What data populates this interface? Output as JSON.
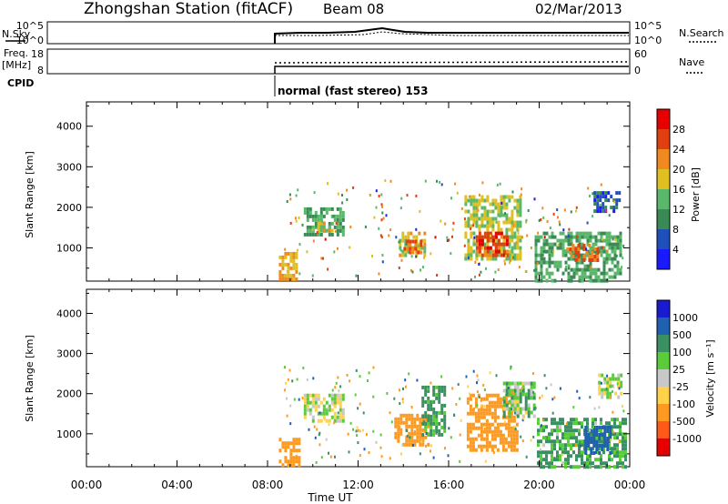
{
  "header": {
    "station": "Zhongshan Station (fitACF)",
    "beam": "Beam 08",
    "date": "02/Mar/2013"
  },
  "noise_panel": {
    "left_label": "N.Sky",
    "left_ticks": [
      "10^5",
      "10^0"
    ],
    "right_ticks": [
      "10^5",
      "10^0"
    ],
    "right_label": "N.Search"
  },
  "freq_panel": {
    "left_label_1": "Freq.",
    "left_label_2": "[MHz]",
    "left_ticks": [
      "18",
      "8"
    ],
    "right_ticks": [
      "60",
      "0"
    ],
    "right_label": "Nave"
  },
  "cpid_panel": {
    "label": "CPID",
    "mode_text": "normal (fast stereo) 153"
  },
  "colors": {
    "power_scale": [
      "#1a1aff",
      "#1f4fb8",
      "#3a8a55",
      "#5ab86a",
      "#e0c020",
      "#f08a20",
      "#e04010",
      "#e60000"
    ],
    "velocity_scale": [
      "#e60000",
      "#ff5a1a",
      "#ff9a20",
      "#ffd24a",
      "#c8c8c8",
      "#5acc3a",
      "#3a9060",
      "#2060b0",
      "#1a1ad0"
    ]
  },
  "chart_data": [
    {
      "type": "heatmap",
      "name": "power",
      "xlabel": "",
      "ylabel": "Slant Range [km]",
      "x_range_hours": [
        0,
        24
      ],
      "ylim": [
        180,
        4600
      ],
      "yticks": [
        "1000",
        "2000",
        "3000",
        "4000"
      ],
      "colorbar": {
        "label": "Power [dB]",
        "ticks": [
          "4",
          "8",
          "12",
          "16",
          "20",
          "24",
          "28"
        ],
        "range": [
          0,
          32
        ]
      },
      "echo_regions": [
        {
          "t0": 8.5,
          "t1": 9.3,
          "r0": 200,
          "r1": 900,
          "v": 20
        },
        {
          "t0": 9.6,
          "t1": 11.4,
          "r0": 1300,
          "r1": 2000,
          "v": 12
        },
        {
          "t0": 10.2,
          "t1": 10.9,
          "r0": 1450,
          "r1": 1650,
          "v": 18
        },
        {
          "t0": 13.8,
          "t1": 15.0,
          "r0": 800,
          "r1": 1400,
          "v": 18
        },
        {
          "t0": 14.0,
          "t1": 14.8,
          "r0": 900,
          "r1": 1200,
          "v": 24
        },
        {
          "t0": 16.7,
          "t1": 19.2,
          "r0": 700,
          "r1": 2300,
          "v": 16
        },
        {
          "t0": 17.2,
          "t1": 18.6,
          "r0": 800,
          "r1": 1400,
          "v": 26
        },
        {
          "t0": 19.8,
          "t1": 23.6,
          "r0": 200,
          "r1": 1400,
          "v": 12
        },
        {
          "t0": 21.2,
          "t1": 22.6,
          "r0": 700,
          "r1": 1100,
          "v": 24
        },
        {
          "t0": 22.4,
          "t1": 23.6,
          "r0": 1900,
          "r1": 2400,
          "v": 6
        }
      ]
    },
    {
      "type": "heatmap",
      "name": "velocity",
      "xlabel": "Time UT",
      "ylabel": "Slant Range [km]",
      "x_range_hours": [
        0,
        24
      ],
      "xticks": [
        "00:00",
        "04:00",
        "08:00",
        "12:00",
        "16:00",
        "20:00",
        "00:00"
      ],
      "ylim": [
        180,
        4600
      ],
      "yticks": [
        "1000",
        "2000",
        "3000",
        "4000"
      ],
      "colorbar": {
        "label": "Velocity [m s⁻¹]",
        "ticks": [
          "1000",
          "500",
          "100",
          "25",
          "-25",
          "-100",
          "-500",
          "-1000"
        ]
      },
      "echo_regions": [
        {
          "t0": 8.5,
          "t1": 9.4,
          "r0": 200,
          "r1": 900,
          "v": -300
        },
        {
          "t0": 9.6,
          "t1": 11.4,
          "r0": 1300,
          "r1": 2000,
          "v": 0
        },
        {
          "t0": 13.6,
          "t1": 15.1,
          "r0": 700,
          "r1": 1500,
          "v": -300
        },
        {
          "t0": 14.8,
          "t1": 15.8,
          "r0": 1000,
          "r1": 2200,
          "v": 150
        },
        {
          "t0": 16.8,
          "t1": 19.0,
          "r0": 600,
          "r1": 2000,
          "v": -400
        },
        {
          "t0": 18.4,
          "t1": 19.8,
          "r0": 1400,
          "r1": 2300,
          "v": 60
        },
        {
          "t0": 19.9,
          "t1": 23.8,
          "r0": 200,
          "r1": 1400,
          "v": 120
        },
        {
          "t0": 22.0,
          "t1": 23.2,
          "r0": 500,
          "r1": 1200,
          "v": 800
        },
        {
          "t0": 22.6,
          "t1": 23.6,
          "r0": 1900,
          "r1": 2500,
          "v": 0
        }
      ]
    }
  ]
}
